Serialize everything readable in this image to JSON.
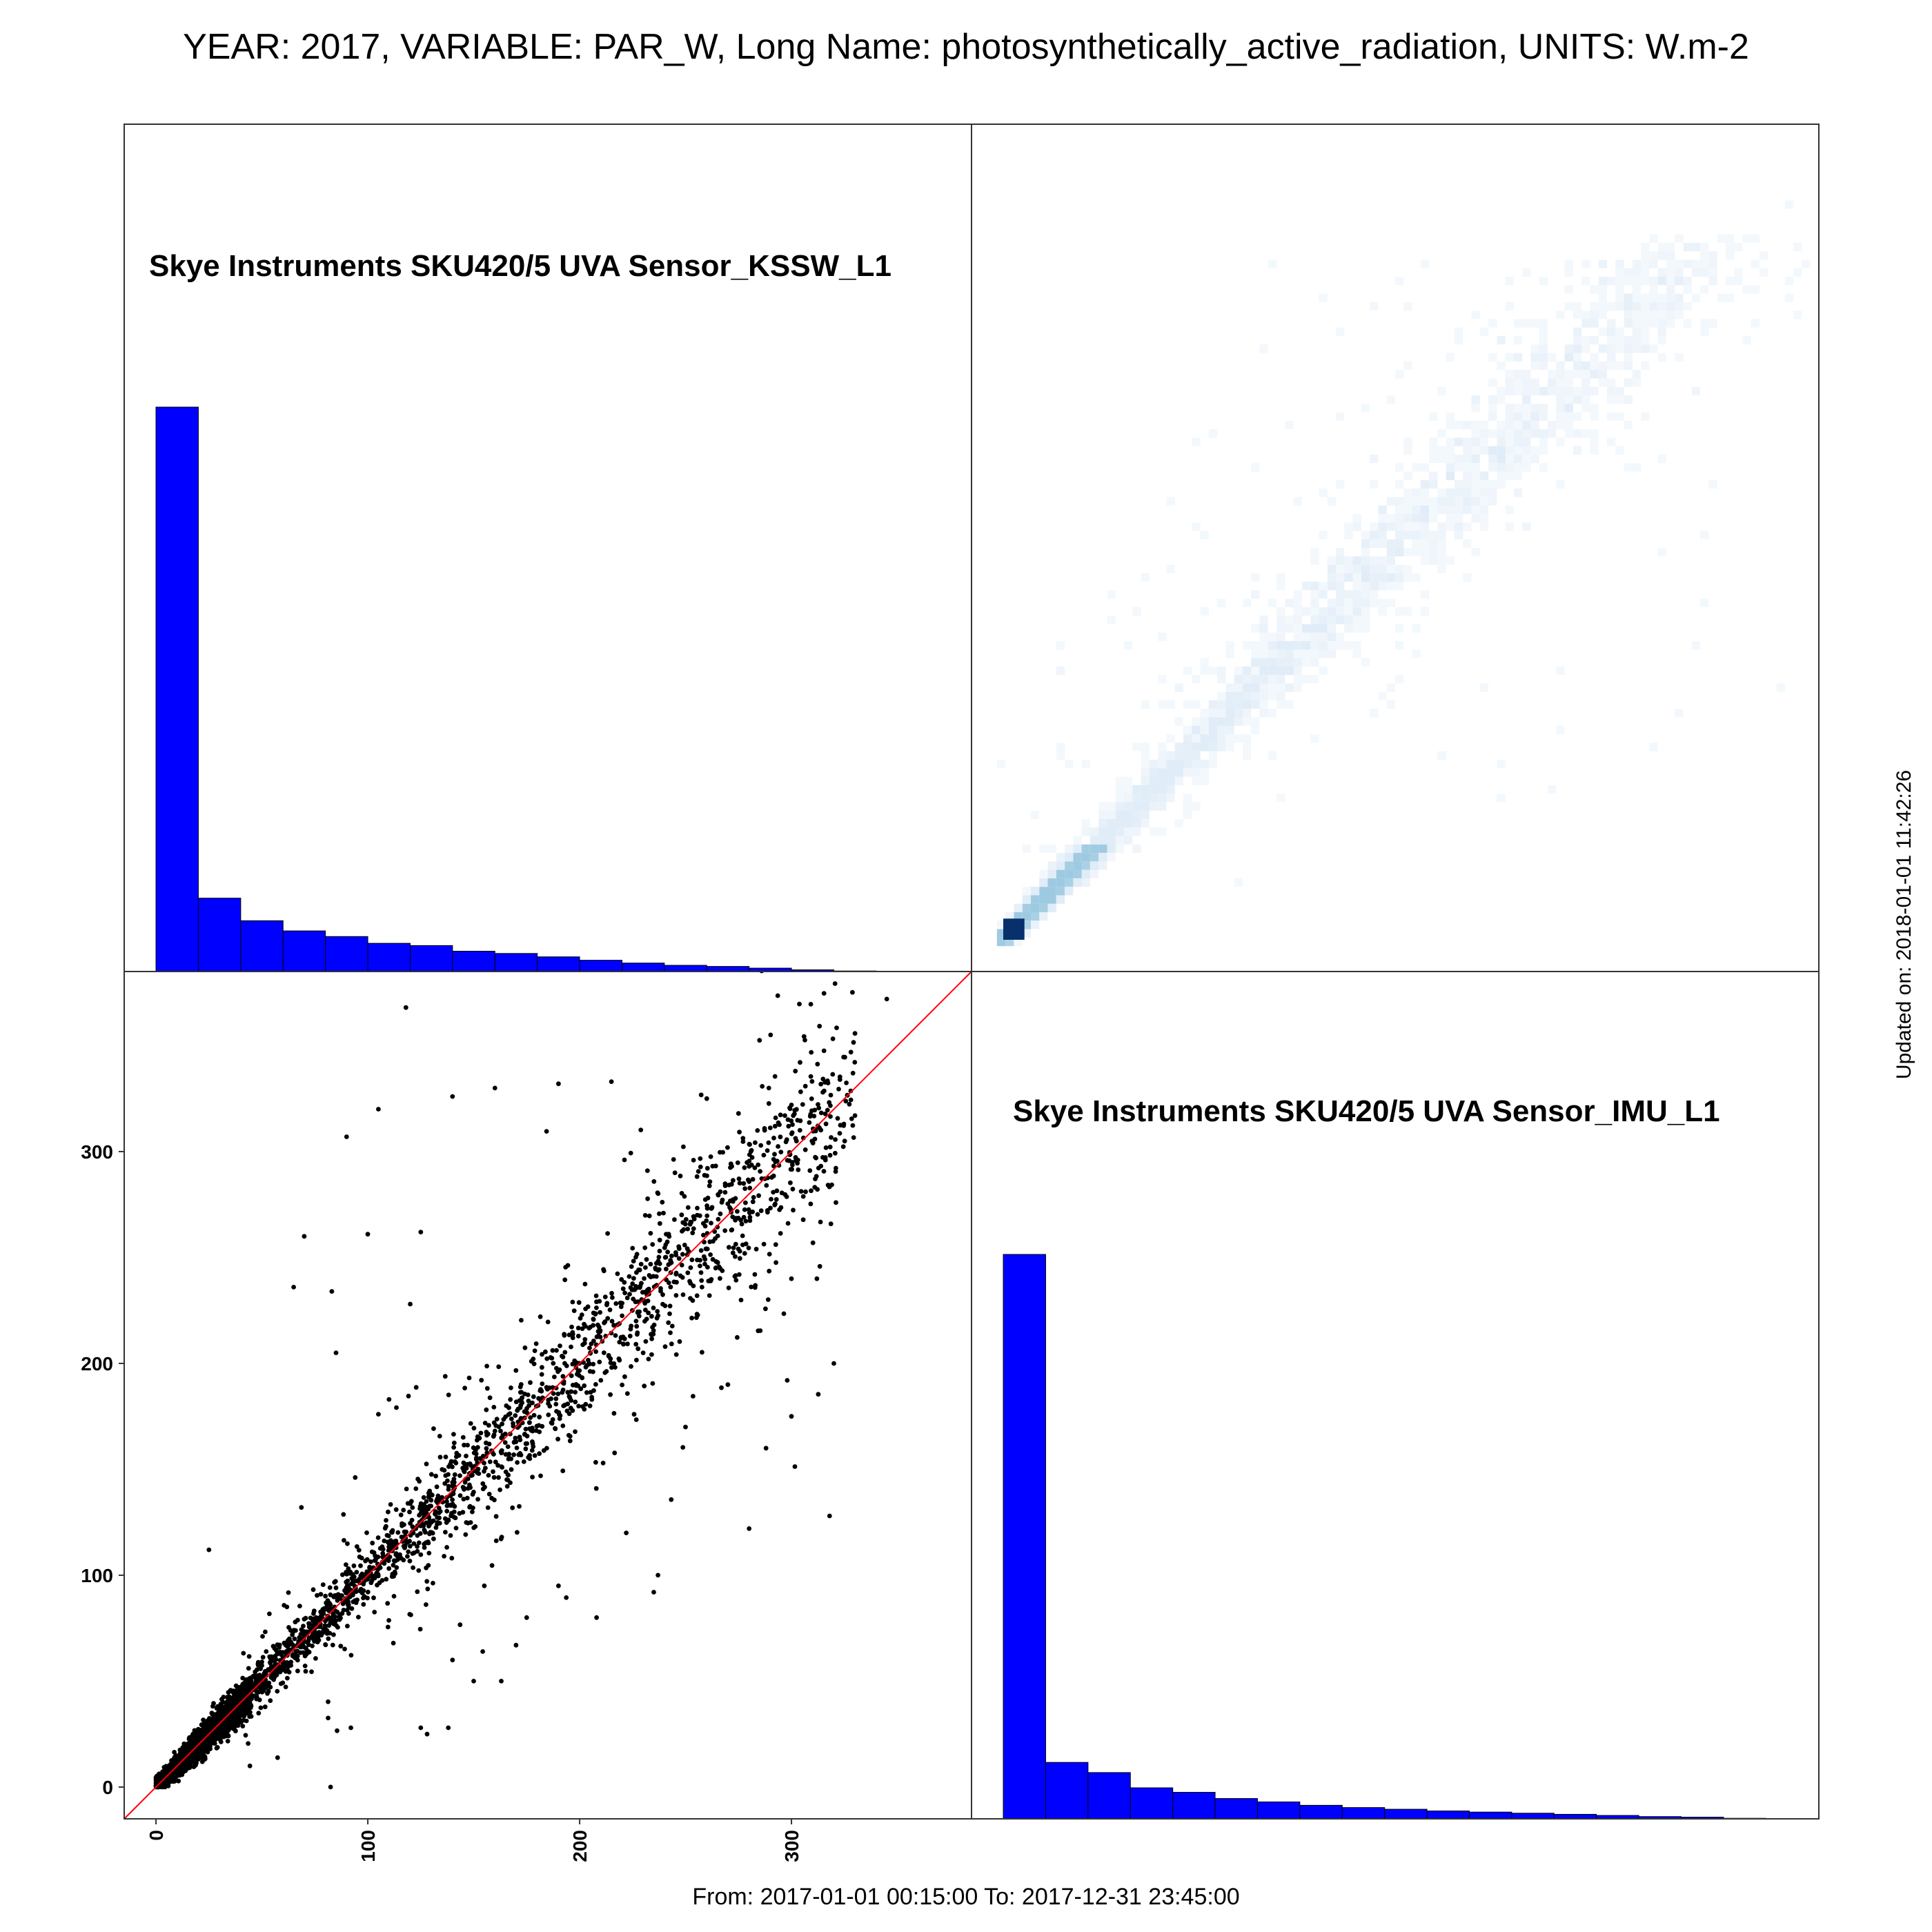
{
  "header": {
    "title": "YEAR: 2017, VARIABLE: PAR_W, Long Name: photosynthetically_active_radiation, UNITS: W.m-2"
  },
  "footer": {
    "range": "From: 2017-01-01 00:15:00 To: 2017-12-31 23:45:00",
    "updated": "Updated on: 2018-01-01 11:42:26"
  },
  "chart_data": [
    {
      "type": "bar",
      "panel": "top-left",
      "title": "Skye Instruments SKU420/5 UVA Sensor_KSSW_L1",
      "bin_edges": [
        0,
        20,
        40,
        60,
        80,
        100,
        120,
        140,
        160,
        180,
        200,
        220,
        240,
        260,
        280,
        300,
        320,
        340,
        360
      ],
      "values": [
        1000,
        130,
        90,
        72,
        62,
        50,
        46,
        36,
        32,
        26,
        20,
        15,
        11,
        9,
        6,
        3,
        1,
        0.3
      ],
      "color": "#0000ff"
    },
    {
      "type": "heatmap",
      "panel": "top-right",
      "description_colors": [
        "#ffffff",
        "#deebf7",
        "#9ecae1",
        "#08306b"
      ],
      "xlim": [
        -15,
        385
      ],
      "ylim": [
        -15,
        385
      ]
    },
    {
      "type": "scatter",
      "panel": "bottom-left",
      "xlim": [
        -15,
        385
      ],
      "ylim": [
        -15,
        385
      ],
      "x_ticks": [
        0,
        100,
        200,
        300
      ],
      "y_ticks": [
        0,
        100,
        200,
        300
      ],
      "x_tick_labels": [
        "0",
        "100",
        "200",
        "300"
      ],
      "y_tick_labels": [
        "0",
        "100",
        "200",
        "300"
      ],
      "reference_line": "y = x",
      "reference_line_color": "#ff0000",
      "outliers": [
        [
          118,
          368
        ],
        [
          345,
          372
        ],
        [
          160,
          330
        ],
        [
          215,
          333
        ],
        [
          190,
          332
        ],
        [
          140,
          326
        ],
        [
          90,
          307
        ],
        [
          105,
          320
        ],
        [
          260,
          325
        ],
        [
          275,
          318
        ],
        [
          300,
          322
        ],
        [
          330,
          317
        ],
        [
          245,
          290
        ],
        [
          232,
          291
        ],
        [
          120,
          228
        ],
        [
          65,
          236
        ],
        [
          83,
          234
        ],
        [
          100,
          261
        ],
        [
          125,
          262
        ],
        [
          70,
          260
        ],
        [
          105,
          176
        ],
        [
          110,
          183
        ],
        [
          85,
          205
        ],
        [
          210,
          192
        ],
        [
          230,
          205
        ],
        [
          250,
          170
        ],
        [
          270,
          190
        ],
        [
          300,
          175
        ],
        [
          320,
          200
        ],
        [
          318,
          128
        ],
        [
          288,
          160
        ],
        [
          280,
          122
        ],
        [
          235,
          92
        ],
        [
          222,
          120
        ],
        [
          190,
          95
        ],
        [
          163,
          50
        ],
        [
          150,
          50
        ],
        [
          170,
          67
        ],
        [
          140,
          60
        ],
        [
          125,
          28
        ],
        [
          128,
          25
        ],
        [
          138,
          28
        ],
        [
          92,
          28
        ],
        [
          25,
          112
        ],
        [
          155,
          95
        ],
        [
          175,
          80
        ],
        [
          208,
          80
        ],
        [
          237,
          100
        ],
        [
          298,
          192
        ],
        [
          312,
          240
        ],
        [
          300,
          240
        ]
      ]
    },
    {
      "type": "bar",
      "panel": "bottom-right",
      "title": "Skye Instruments SKU420/5 UVA Sensor_IMU_L1",
      "bin_edges": [
        0,
        20,
        40,
        60,
        80,
        100,
        120,
        140,
        160,
        180,
        200,
        220,
        240,
        260,
        280,
        300,
        320,
        340,
        360
      ],
      "values": [
        1000,
        100,
        82,
        55,
        47,
        36,
        30,
        24,
        20,
        17,
        14,
        12,
        10,
        8,
        6,
        4,
        3,
        1
      ],
      "color": "#0000ff"
    }
  ]
}
